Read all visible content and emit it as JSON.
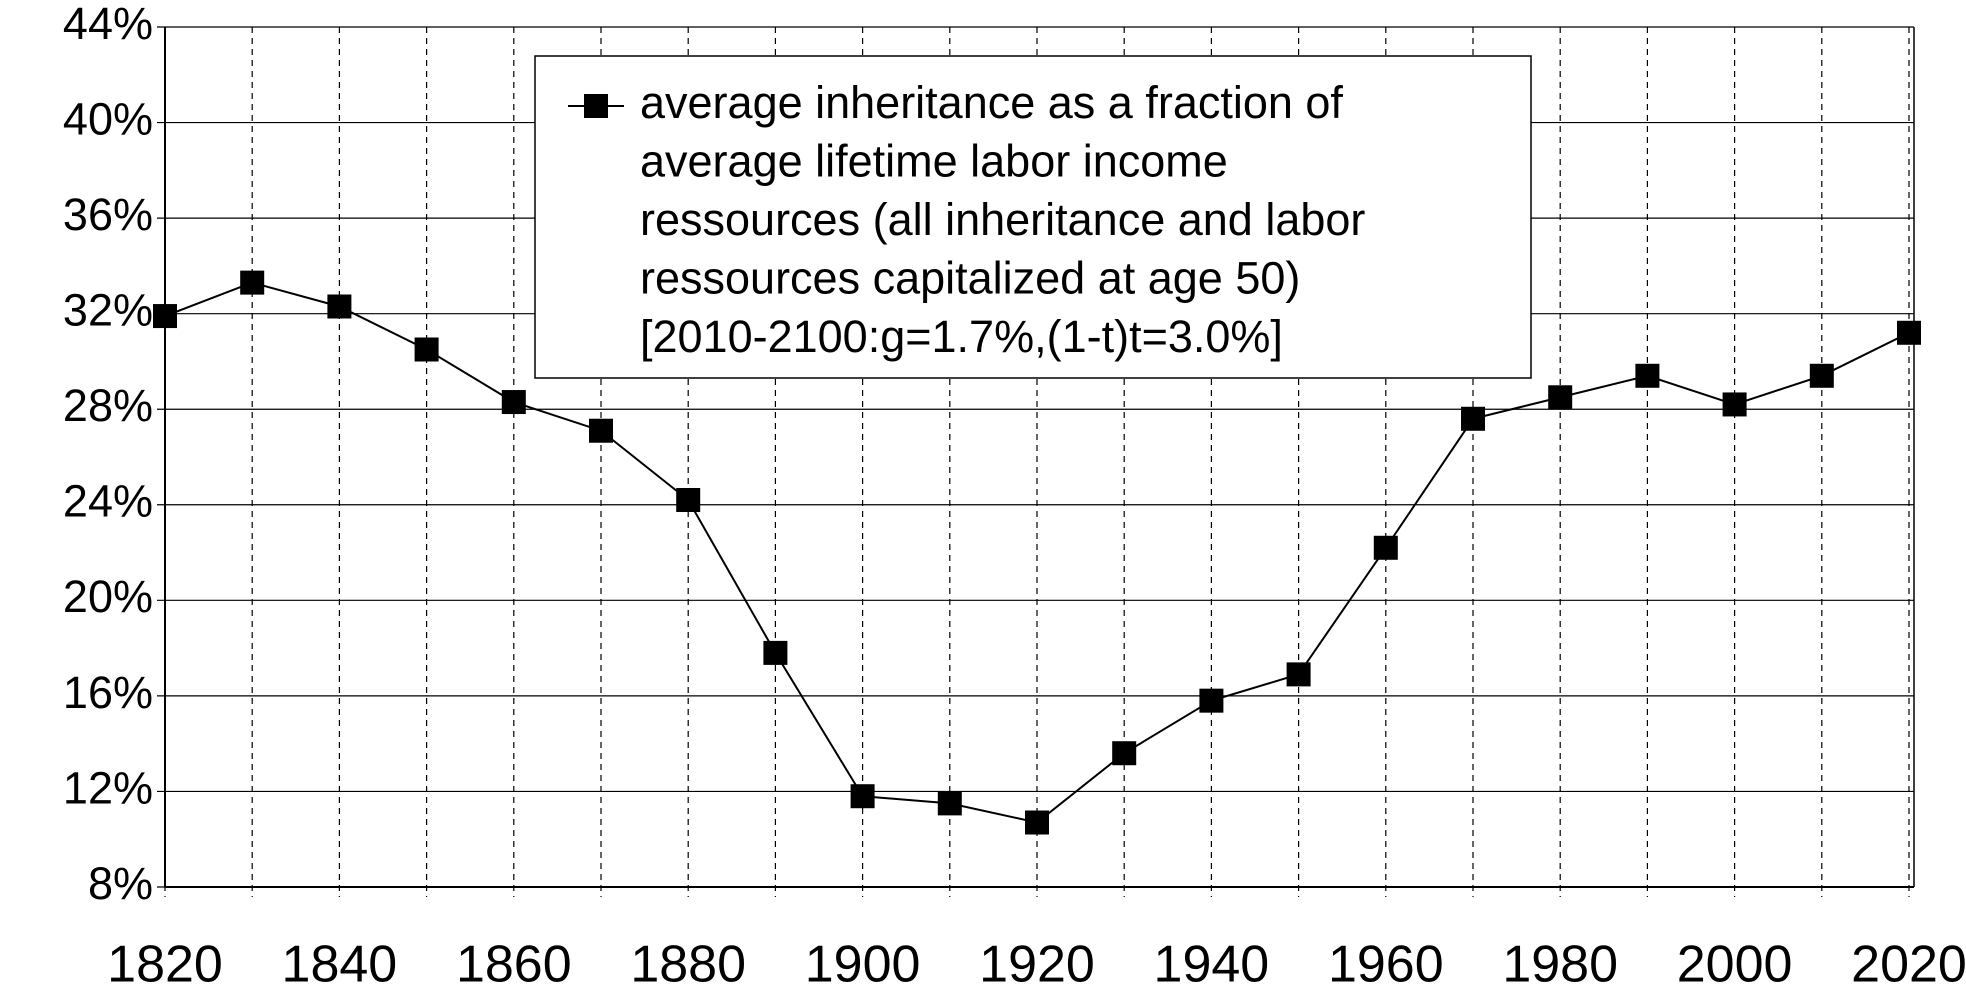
{
  "chart_data": {
    "type": "line",
    "x": [
      1820,
      1830,
      1840,
      1850,
      1860,
      1870,
      1880,
      1890,
      1900,
      1910,
      1920,
      1930,
      1940,
      1950,
      1960,
      1970,
      1980,
      1990,
      2000,
      2010,
      2020
    ],
    "series": [
      {
        "name": "average inheritance as a fraction of\naverage lifetime labor income\nressources (all inheritance and labor\nressources capitalized at age 50)\n[2010-2100:g=1.7%,(1-t)t=3.0%]",
        "color": "#000000",
        "values": [
          31.9,
          33.3,
          32.3,
          30.5,
          28.3,
          27.1,
          24.2,
          17.8,
          11.8,
          11.5,
          10.7,
          13.6,
          15.8,
          16.9,
          22.2,
          27.6,
          28.5,
          29.4,
          28.2,
          29.4,
          31.2
        ]
      }
    ],
    "xlim": [
      1820,
      2020
    ],
    "xticks": [
      1820,
      1840,
      1860,
      1880,
      1900,
      1920,
      1940,
      1960,
      1980,
      2000,
      2020
    ],
    "xgrid_ticks": [
      1820,
      1830,
      1840,
      1850,
      1860,
      1870,
      1880,
      1890,
      1900,
      1910,
      1920,
      1930,
      1940,
      1950,
      1960,
      1970,
      1980,
      1990,
      2000,
      2010,
      2020
    ],
    "ylim": [
      8,
      44
    ],
    "yticks": [
      {
        "value": 8,
        "label": "8%"
      },
      {
        "value": 12,
        "label": "12%"
      },
      {
        "value": 16,
        "label": "16%"
      },
      {
        "value": 20,
        "label": "20%"
      },
      {
        "value": 24,
        "label": "24%"
      },
      {
        "value": 28,
        "label": "28%"
      },
      {
        "value": 32,
        "label": "32%"
      },
      {
        "value": 36,
        "label": "36%"
      },
      {
        "value": 40,
        "label": "40%"
      },
      {
        "value": 44,
        "label": "44%"
      }
    ],
    "grid": true
  }
}
